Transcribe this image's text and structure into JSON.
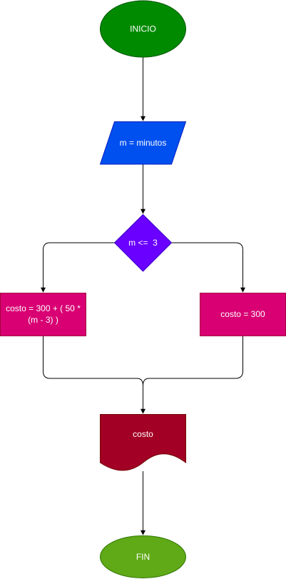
{
  "nodes": {
    "start": {
      "label": "INICIO",
      "fill": "#008a00"
    },
    "input": {
      "label": "m = minutos",
      "fill": "#0050ef"
    },
    "decision": {
      "label": "m <=  3",
      "fill": "#6a00ff"
    },
    "process_left": {
      "line1": "costo = 300 + ( 50 *",
      "line2": "(m - 3) )",
      "fill": "#d80073"
    },
    "process_right": {
      "label": "costo = 300",
      "fill": "#d80073"
    },
    "output": {
      "label": "costo",
      "fill": "#a20025"
    },
    "end": {
      "label": "FIN",
      "fill": "#60a917"
    }
  },
  "connector_color": "#000000"
}
